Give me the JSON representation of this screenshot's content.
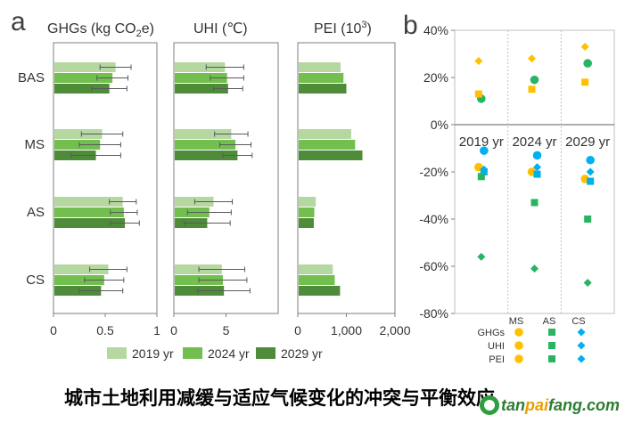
{
  "panel_labels": {
    "a": "a",
    "b": "b"
  },
  "caption": "城市土地利用减缓与适应气候变化的冲突与平衡效应",
  "watermark": {
    "prefix": "tan",
    "accent": "pai",
    "suffix": "fang.com",
    "color_dark": "#2e7d32",
    "color_accent": "#e8a000"
  },
  "colors": {
    "yr2019": "#b5d7a0",
    "yr2024": "#72bf4f",
    "yr2029": "#4f8c3a",
    "GHGs": "#00b0f0",
    "UHI": "#ffc000",
    "PEI": "#28b463",
    "axis": "#7f7f7f"
  },
  "chart_data": [
    {
      "type": "bar",
      "orientation": "horizontal",
      "panel": "a",
      "categories": [
        "BAS",
        "MS",
        "AS",
        "CS"
      ],
      "series_names": [
        "2019 yr",
        "2024 yr",
        "2029 yr"
      ],
      "subplots": [
        {
          "title_parts": {
            "pre": "GHGs (kg CO",
            "sub": "2",
            "post": "e)"
          },
          "xlim": [
            0,
            1
          ],
          "ticks": [
            0,
            0.5,
            1
          ],
          "tick_labels": [
            "0",
            "0.5",
            "1"
          ],
          "values": {
            "BAS": [
              0.6,
              0.57,
              0.54
            ],
            "MS": [
              0.47,
              0.45,
              0.41
            ],
            "AS": [
              0.67,
              0.68,
              0.69
            ],
            "CS": [
              0.53,
              0.49,
              0.46
            ]
          },
          "errors": {
            "BAS": [
              0.15,
              0.15,
              0.17
            ],
            "MS": [
              0.2,
              0.2,
              0.24
            ],
            "AS": [
              0.13,
              0.13,
              0.14
            ],
            "CS": [
              0.18,
              0.19,
              0.21
            ]
          }
        },
        {
          "title_parts": {
            "pre": "UHI (℃)",
            "sub": "",
            "post": ""
          },
          "xlim": [
            0,
            10
          ],
          "ticks": [
            0,
            5
          ],
          "tick_labels": [
            "0",
            "5"
          ],
          "values": {
            "BAS": [
              4.9,
              5.1,
              5.2
            ],
            "MS": [
              5.5,
              5.9,
              6.1
            ],
            "AS": [
              3.8,
              3.4,
              3.2
            ],
            "CS": [
              4.6,
              4.7,
              4.8
            ]
          },
          "errors": {
            "BAS": [
              1.8,
              1.6,
              1.4
            ],
            "MS": [
              1.6,
              1.5,
              1.4
            ],
            "AS": [
              1.8,
              2.1,
              2.2
            ],
            "CS": [
              2.2,
              2.3,
              2.5
            ]
          }
        },
        {
          "title_parts": {
            "pre": "PEI (10",
            "sup": "3",
            "post": ")"
          },
          "xlim": [
            0,
            2000
          ],
          "ticks": [
            0,
            1000,
            2000
          ],
          "tick_labels": [
            "0",
            "1,000",
            "2,000"
          ],
          "values": {
            "BAS": [
              880,
              940,
              1000
            ],
            "MS": [
              1100,
              1180,
              1330
            ],
            "AS": [
              370,
              340,
              330
            ],
            "CS": [
              720,
              760,
              870
            ]
          }
        }
      ]
    },
    {
      "type": "scatter",
      "panel": "b",
      "categories": [
        "2019 yr",
        "2024 yr",
        "2029 yr"
      ],
      "group_labels": [
        "MS",
        "AS",
        "CS"
      ],
      "series": [
        {
          "name": "GHGs",
          "values": [
            -11,
            -14,
            -15
          ]
        },
        {
          "name": "UHI",
          "values": [
            -19,
            -21,
            -24
          ]
        },
        {
          "name": "PEI",
          "values": [
            -20,
            -19,
            -20
          ]
        }
      ],
      "point_groups": [
        {
          "marker": "circle",
          "values": {
            "GHGs": [
              -11,
              -13,
              -15
            ],
            "UHI": [
              -18,
              -20,
              -23
            ],
            "PEI": [
              11,
              19,
              26
            ]
          }
        },
        {
          "marker": "square",
          "values": {
            "GHGs": [
              -20,
              -21,
              -24
            ],
            "UHI": [
              13,
              15,
              18
            ],
            "PEI": [
              -22,
              -33,
              -40
            ]
          }
        },
        {
          "marker": "diamond",
          "values": {
            "GHGs": [
              -19,
              -18,
              -20
            ],
            "UHI": [
              27,
              28,
              33
            ],
            "PEI": [
              -56,
              -61,
              -67
            ]
          }
        }
      ],
      "ylim": [
        -80,
        40
      ],
      "ticks": [
        40,
        20,
        0,
        -20,
        -40,
        -60,
        -80
      ],
      "tick_labels": [
        "40%",
        "20%",
        "0%",
        "-20%",
        "-40%",
        "-60%",
        "-80%"
      ],
      "legend_rows": [
        "GHGs",
        "UHI",
        "PEI"
      ],
      "legend_cols": [
        "MS",
        "AS",
        "CS"
      ]
    }
  ]
}
